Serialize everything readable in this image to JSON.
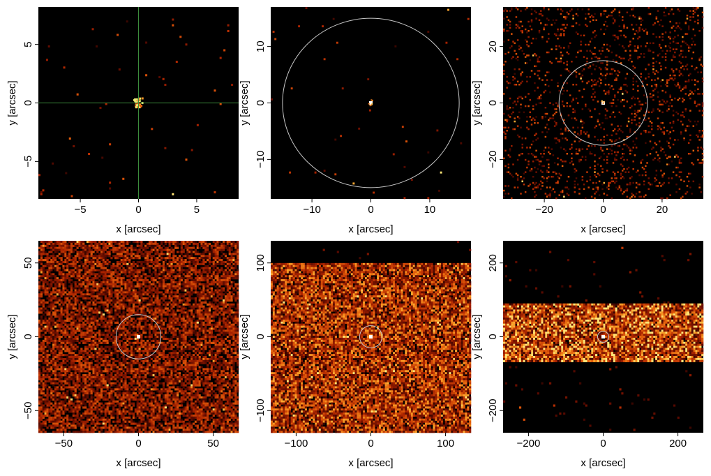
{
  "chart_data": [
    {
      "type": "heatmap",
      "panel": "top-left",
      "xlabel": "x [arcsec]",
      "ylabel": "y [arcsec]",
      "xlim": [
        -8.6,
        8.6
      ],
      "ylim": [
        -8.2,
        8.2
      ],
      "xticks": [
        -5,
        0,
        5
      ],
      "xtick_labels": [
        "−5",
        "0",
        "5"
      ],
      "yticks": [
        -5,
        0,
        5
      ],
      "ytick_labels": [
        "−5",
        "0",
        "5"
      ],
      "source": [
        0,
        0
      ],
      "overlay": "crosshair",
      "crosshair_color": "#3c8c3c",
      "background_color": "#000000"
    },
    {
      "type": "heatmap",
      "panel": "top-middle",
      "xlabel": "x [arcsec]",
      "ylabel": "y [arcsec]",
      "xlim": [
        -17,
        17
      ],
      "ylim": [
        -17,
        17
      ],
      "xticks": [
        -10,
        0,
        10
      ],
      "xtick_labels": [
        "−10",
        "0",
        "10"
      ],
      "yticks": [
        -10,
        0,
        10
      ],
      "ytick_labels": [
        "−10",
        "0",
        "10"
      ],
      "source": [
        0,
        0
      ],
      "overlay": "circle",
      "circle_radius": 15,
      "circle_color": "#c8c8c8",
      "background_color": "#000000"
    },
    {
      "type": "heatmap",
      "panel": "top-right",
      "xlabel": "x [arcsec]",
      "ylabel": "y [arcsec]",
      "xlim": [
        -34,
        34
      ],
      "ylim": [
        -34,
        34
      ],
      "xticks": [
        -20,
        0,
        20
      ],
      "xtick_labels": [
        "−20",
        "0",
        "20"
      ],
      "yticks": [
        -20,
        0,
        20
      ],
      "ytick_labels": [
        "−20",
        "0",
        "20"
      ],
      "source": [
        0,
        0
      ],
      "overlay": "circle",
      "circle_radius": 15,
      "circle_color": "#c8c8c8",
      "background_color": "#000000"
    },
    {
      "type": "heatmap",
      "panel": "bottom-left",
      "xlabel": "x [arcsec]",
      "ylabel": "y [arcsec]",
      "xlim": [
        -67,
        67
      ],
      "ylim": [
        -65,
        65
      ],
      "xticks": [
        -50,
        0,
        50
      ],
      "xtick_labels": [
        "−50",
        "0",
        "50"
      ],
      "yticks": [
        -50,
        0,
        50
      ],
      "ytick_labels": [
        "−50",
        "0",
        "50"
      ],
      "source": [
        0,
        0
      ],
      "overlay": "circle",
      "circle_radius": 15,
      "circle_color": "#c8c8c8",
      "background_color": "#000000"
    },
    {
      "type": "heatmap",
      "panel": "bottom-middle",
      "xlabel": "x [arcsec]",
      "ylabel": "y [arcsec]",
      "xlim": [
        -134,
        134
      ],
      "ylim": [
        -130,
        130
      ],
      "xticks": [
        -100,
        0,
        100
      ],
      "xtick_labels": [
        "−100",
        "0",
        "100"
      ],
      "yticks": [
        -100,
        0,
        100
      ],
      "ytick_labels": [
        "−100",
        "0",
        "100"
      ],
      "source": [
        0,
        0
      ],
      "overlay": "circle",
      "circle_radius": 15,
      "circle_color": "#c8c8c8",
      "background_color": "#000000"
    },
    {
      "type": "heatmap",
      "panel": "bottom-right",
      "xlabel": "x [arcsec]",
      "ylabel": "y [arcsec]",
      "xlim": [
        -268,
        268
      ],
      "ylim": [
        -260,
        260
      ],
      "xticks": [
        -200,
        0,
        200
      ],
      "xtick_labels": [
        "−200",
        "0",
        "200"
      ],
      "yticks": [
        -200,
        0,
        200
      ],
      "ytick_labels": [
        "−200",
        "0",
        "200"
      ],
      "source": [
        0,
        0
      ],
      "overlay": "circle",
      "circle_radius": 15,
      "circle_color": "#c8c8c8",
      "background_color": "#000000"
    }
  ]
}
